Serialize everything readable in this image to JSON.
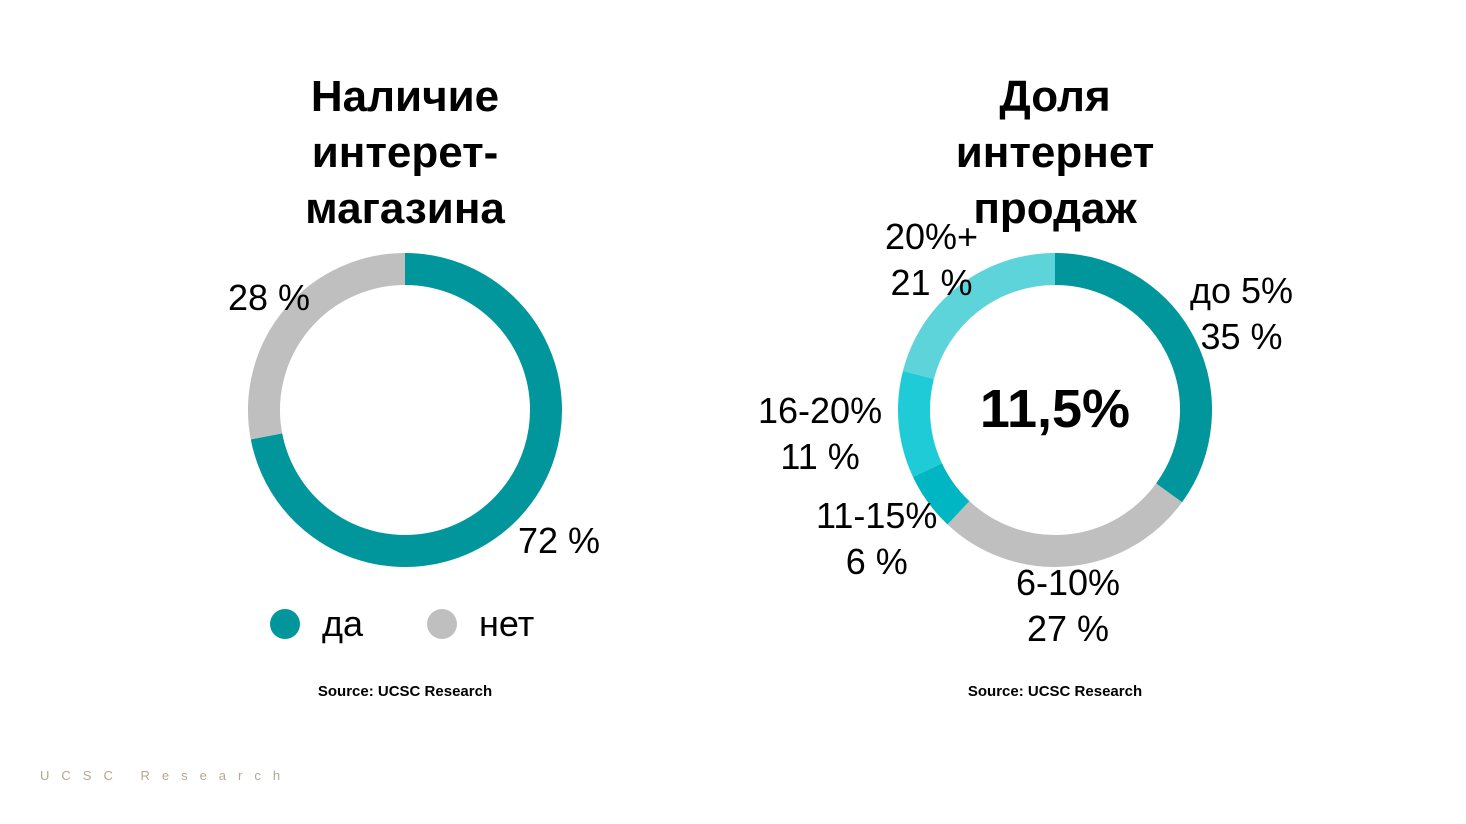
{
  "footer": "UCSC Research",
  "chart_data": [
    {
      "type": "pie",
      "title": "Наличие интерет-магазина",
      "categories": [
        "да",
        "нет"
      ],
      "values": [
        72,
        28
      ],
      "value_labels": [
        "72 %",
        "28 %"
      ],
      "colors": [
        "#00969B",
        "#BFBFBF"
      ],
      "legend": [
        {
          "label": "да",
          "color": "#00969B"
        },
        {
          "label": "нет",
          "color": "#BFBFBF"
        }
      ],
      "legend_position": "bottom",
      "source": "Source: UCSC Research"
    },
    {
      "type": "pie",
      "title": "Доля интернет продаж",
      "center_label": "11,5%",
      "categories": [
        "до 5%",
        "6-10%",
        "11-15%",
        "16-20%",
        "20%+"
      ],
      "values": [
        35,
        27,
        6,
        11,
        21
      ],
      "value_labels": [
        "35 %",
        "27 %",
        "6 %",
        "11 %",
        "21 %"
      ],
      "colors": [
        "#00969B",
        "#BFBFBF",
        "#00B6C2",
        "#1ECBD6",
        "#5DD3DA"
      ],
      "source": "Source: UCSC Research"
    }
  ]
}
